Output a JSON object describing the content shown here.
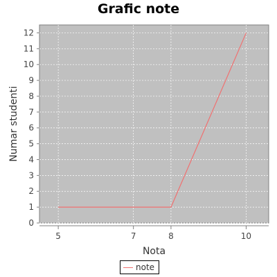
{
  "chart_data": {
    "type": "line",
    "title": "Grafic note",
    "xlabel": "Nota",
    "ylabel": "Numar studenti",
    "x": [
      5,
      8,
      10
    ],
    "series": [
      {
        "name": "note",
        "values": [
          1,
          1,
          12
        ],
        "color": "#f07070"
      }
    ],
    "xticks": [
      5,
      7,
      8,
      10
    ],
    "yticks": [
      0,
      1,
      2,
      3,
      4,
      5,
      6,
      7,
      8,
      9,
      10,
      11,
      12
    ],
    "xlim": [
      4.5,
      10.6
    ],
    "ylim": [
      0,
      12.5
    ],
    "grid": true,
    "legend_position": "bottom-center",
    "colors": {
      "plot_background": "#c0c0c0",
      "gridline": "#ffffff",
      "axis": "#808080"
    }
  }
}
